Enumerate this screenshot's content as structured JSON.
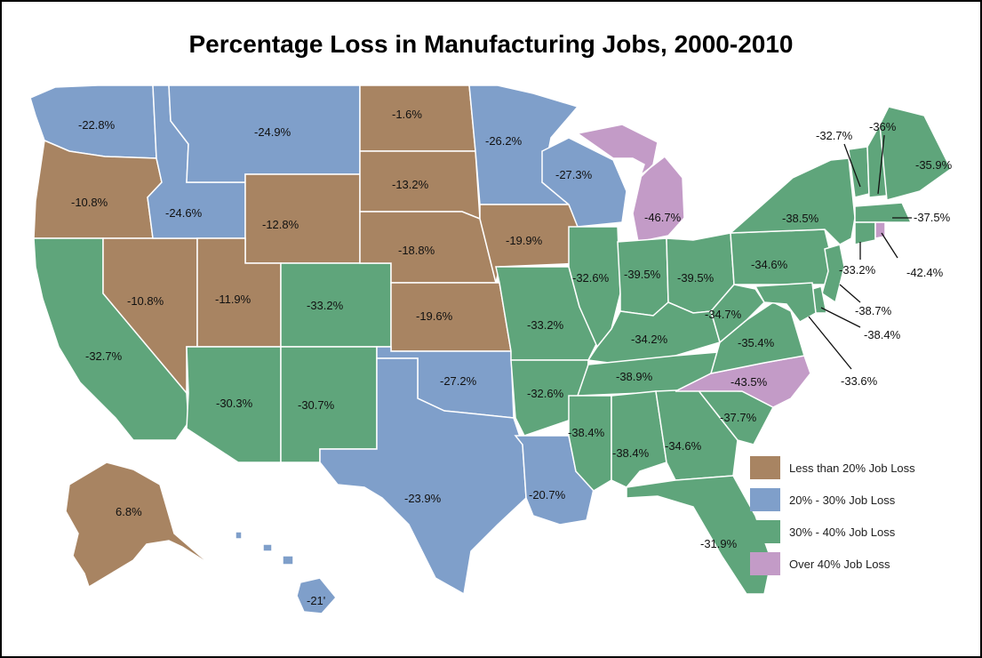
{
  "title": "Percentage Loss in Manufacturing Jobs, 2000-2010",
  "colors": {
    "brown": "#a88462",
    "blue": "#7f9fca",
    "green": "#5fa57b",
    "pink": "#c39bc7"
  },
  "states": {
    "wa": "-22.8%",
    "or": "-10.8%",
    "ca": "-32.7%",
    "nv": "-10.8%",
    "id": "-24.6%",
    "mt": "-24.9%",
    "wy": "-12.8%",
    "ut": "-11.9%",
    "co": "-33.2%",
    "az": "-30.3%",
    "nm": "-30.7%",
    "nd": "-1.6%",
    "sd": "-13.2%",
    "ne": "-18.8%",
    "ks": "-19.6%",
    "ok": "-27.2%",
    "tx": "-23.9%",
    "mn": "-26.2%",
    "ia": "-19.9%",
    "mo": "-33.2%",
    "ar": "-32.6%",
    "la": "-20.7%",
    "wi": "-27.3%",
    "il": "-32.6%",
    "mi": "-46.7%",
    "in": "-39.5%",
    "oh": "-39.5%",
    "ky": "-34.2%",
    "tn": "-38.9%",
    "ms": "-38.4%",
    "al": "-38.4%",
    "ga": "-34.6%",
    "fl": "-31.9%",
    "sc": "-37.7%",
    "nc": "-43.5%",
    "va": "-35.4%",
    "wv": "-34.7%",
    "pa": "-34.6%",
    "ny": "-38.5%",
    "vt": "-32.7%",
    "nh": "-36%",
    "me": "-35.9%",
    "ma": "-37.5%",
    "ct": "-33.2%",
    "ri": "-42.4%",
    "nj": "-38.7%",
    "de": "-38.4%",
    "md": "-33.6%",
    "ak": "6.8%",
    "hi": "-21'"
  },
  "legend": [
    {
      "label": "Less than 20% Job Loss",
      "color": "#a88462"
    },
    {
      "label": "20% - 30% Job Loss",
      "color": "#7f9fca"
    },
    {
      "label": "30% - 40% Job Loss",
      "color": "#5fa57b"
    },
    {
      "label": "Over 40% Job Loss",
      "color": "#c39bc7"
    }
  ]
}
